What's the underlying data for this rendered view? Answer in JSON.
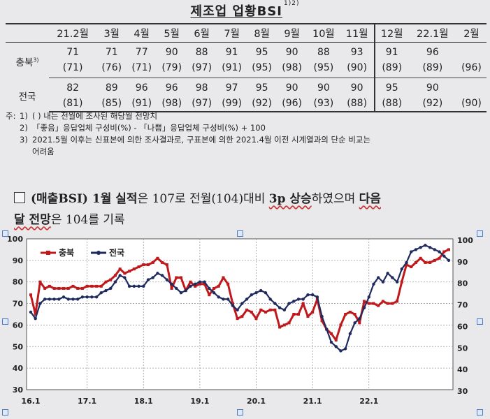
{
  "title": {
    "text": "제조업 업황BSI",
    "sup": "1)2)"
  },
  "table": {
    "months": [
      "21.2월",
      "3월",
      "4월",
      "5월",
      "6월",
      "7월",
      "8월",
      "9월",
      "10월",
      "11월",
      "12월",
      "22.1월",
      "2월"
    ],
    "rows": [
      {
        "label": "충북",
        "label_sup": "3)",
        "actual": [
          "71",
          "71",
          "77",
          "90",
          "88",
          "91",
          "95",
          "90",
          "88",
          "93",
          "91",
          "96",
          ""
        ],
        "forecast": [
          "(71)",
          "(76)",
          "(71)",
          "(79)",
          "(97)",
          "(91)",
          "(95)",
          "(98)",
          "(95)",
          "(90)",
          "(89)",
          "(89)",
          "(96)"
        ]
      },
      {
        "label": "전국",
        "label_sup": "",
        "actual": [
          "82",
          "89",
          "96",
          "96",
          "98",
          "97",
          "95",
          "90",
          "90",
          "90",
          "95",
          "90",
          ""
        ],
        "forecast": [
          "(81)",
          "(85)",
          "(91)",
          "(98)",
          "(97)",
          "(99)",
          "(92)",
          "(96)",
          "(93)",
          "(88)",
          "(88)",
          "(92)",
          "(90)"
        ]
      }
    ]
  },
  "notes": {
    "prefix": "주:",
    "items": [
      {
        "num": "1)",
        "text": "(  ) 내는 전월에 조사된 해당월 전망치"
      },
      {
        "num": "2)",
        "text": "「좋음」응답업체 구성비(%) - 「나쁨」응답업체 구성비(%) + 100"
      },
      {
        "num": "3)",
        "text": "2021.5월 이후는 신표본에 의한 조사결과로, 구표본에 의한 2021.4월 이전 시계열과의 단순 비교는"
      }
    ],
    "continuation": "어려움"
  },
  "summary": {
    "p1": "(매출BSI) 1월 실적",
    "p2": "은 107로 전월(104)대비 ",
    "p3": "3p 상승",
    "p4": "하였으며 ",
    "p5": "다음",
    "p6": "달 전망",
    "p7": "은 104를 기록"
  },
  "colors": {
    "chungbuk": "#c0191c",
    "national": "#1f2a5e",
    "grid": "#9a9a9a",
    "plot_bg": "#ffffff"
  },
  "chart_data": {
    "type": "line",
    "x_tick_labels": [
      "16.1",
      "17.1",
      "18.1",
      "19.1",
      "20.1",
      "21.1",
      "22.1"
    ],
    "ylim": [
      30,
      100
    ],
    "y_ticks": [
      30,
      40,
      50,
      60,
      70,
      80,
      90,
      100
    ],
    "grid": true,
    "legend_position": "top-left",
    "series": [
      {
        "name": "충북",
        "color": "#c0191c",
        "marker": "square",
        "values": [
          74,
          65,
          80,
          77,
          78,
          77,
          77,
          77,
          77,
          78,
          77,
          77,
          78,
          78,
          78,
          78,
          80,
          81,
          83,
          86,
          84,
          85,
          86,
          87,
          88,
          88,
          89,
          91,
          89,
          88,
          77,
          82,
          82,
          76,
          80,
          78,
          79,
          79,
          74,
          77,
          78,
          82,
          79,
          70,
          63,
          64,
          67,
          66,
          63,
          67,
          66,
          67,
          67,
          59,
          60,
          61,
          65,
          65,
          70,
          64,
          66,
          72,
          62,
          58,
          56,
          53,
          60,
          65,
          66,
          65,
          61,
          71,
          70,
          70,
          69,
          71,
          70,
          70,
          71,
          80,
          88,
          87,
          89,
          91,
          89,
          89,
          90,
          91,
          94,
          95
        ]
      },
      {
        "name": "전국",
        "color": "#1f2a5e",
        "marker": "dot",
        "values": [
          66,
          63,
          70,
          72,
          72,
          72,
          72,
          73,
          72,
          72,
          72,
          73,
          73,
          73,
          73,
          75,
          76,
          77,
          80,
          83,
          82,
          78,
          78,
          78,
          78,
          81,
          82,
          84,
          83,
          81,
          79,
          77,
          75,
          76,
          78,
          79,
          80,
          80,
          77,
          75,
          73,
          72,
          72,
          69,
          67,
          70,
          72,
          74,
          75,
          76,
          75,
          72,
          70,
          68,
          67,
          70,
          71,
          72,
          72,
          74,
          74,
          73,
          64,
          58,
          52,
          50,
          48,
          49,
          56,
          61,
          63,
          68,
          73,
          79,
          82,
          80,
          84,
          82,
          80,
          86,
          89,
          94,
          95,
          96,
          97,
          96,
          95,
          94,
          92,
          90
        ]
      }
    ]
  }
}
